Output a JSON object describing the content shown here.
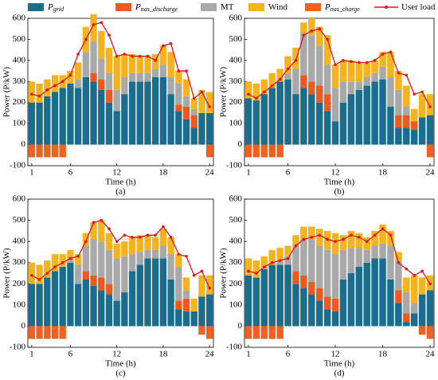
{
  "chart_data": [
    {
      "type": "stacked_bar_line",
      "caption": "(a)",
      "x_label": "Time (h)",
      "y_label": "Power (P/kW)",
      "x": [
        1,
        2,
        3,
        4,
        5,
        6,
        7,
        8,
        9,
        10,
        11,
        12,
        13,
        14,
        15,
        16,
        17,
        18,
        19,
        20,
        21,
        22,
        23,
        24
      ],
      "xlim": [
        0.5,
        24.5
      ],
      "xticks": [
        1,
        6,
        12,
        18,
        24
      ],
      "ylim": [
        -100,
        600
      ],
      "yticks": [
        -100,
        0,
        100,
        200,
        300,
        400,
        500,
        600
      ],
      "series": [
        {
          "name": "P",
          "subscript": "grid",
          "color": "#1b6d8e",
          "values": [
            200,
            200,
            230,
            250,
            270,
            290,
            270,
            320,
            300,
            260,
            200,
            160,
            240,
            300,
            300,
            300,
            320,
            320,
            240,
            160,
            120,
            80,
            150,
            150
          ]
        },
        {
          "name": "P",
          "subscript": "nas_discharge",
          "color": "#ec5a22",
          "values": [
            0,
            0,
            0,
            0,
            0,
            0,
            0,
            0,
            40,
            50,
            60,
            0,
            0,
            0,
            0,
            0,
            0,
            0,
            0,
            30,
            60,
            60,
            0,
            0
          ]
        },
        {
          "name": "MT",
          "color": "#a9a9a9",
          "values": [
            0,
            0,
            0,
            0,
            0,
            0,
            40,
            120,
            150,
            100,
            80,
            100,
            80,
            40,
            40,
            40,
            40,
            60,
            80,
            100,
            50,
            30,
            0,
            0
          ]
        },
        {
          "name": "Wind",
          "color": "#f6b320",
          "values": [
            100,
            90,
            80,
            80,
            60,
            60,
            80,
            120,
            130,
            130,
            120,
            160,
            110,
            90,
            80,
            80,
            70,
            90,
            120,
            60,
            80,
            50,
            110,
            100
          ]
        },
        {
          "name": "P",
          "subscript": "nas_charge",
          "color": "#f0601e",
          "values": [
            -60,
            -60,
            -60,
            -60,
            -60,
            0,
            0,
            0,
            0,
            0,
            0,
            0,
            0,
            0,
            0,
            0,
            0,
            0,
            0,
            0,
            0,
            0,
            0,
            -60
          ]
        },
        {
          "name": "User load",
          "type": "line",
          "color": "#e0161e",
          "values": [
            240,
            230,
            260,
            280,
            300,
            330,
            430,
            500,
            570,
            580,
            520,
            420,
            430,
            420,
            420,
            420,
            400,
            470,
            480,
            350,
            350,
            220,
            250,
            180
          ]
        }
      ]
    },
    {
      "type": "stacked_bar_line",
      "caption": "(b)",
      "x_label": "Time (h)",
      "y_label": "Power (P/kW)",
      "x": [
        1,
        2,
        3,
        4,
        5,
        6,
        7,
        8,
        9,
        10,
        11,
        12,
        13,
        14,
        15,
        16,
        17,
        18,
        19,
        20,
        21,
        22,
        23,
        24
      ],
      "xlim": [
        0.5,
        24.5
      ],
      "xticks": [
        1,
        6,
        12,
        18,
        24
      ],
      "ylim": [
        -100,
        600
      ],
      "yticks": [
        -100,
        0,
        100,
        200,
        300,
        400,
        500,
        600
      ],
      "series": [
        {
          "color": "#1b6d8e",
          "values": [
            220,
            210,
            240,
            270,
            300,
            310,
            240,
            270,
            240,
            200,
            160,
            110,
            200,
            240,
            260,
            280,
            300,
            310,
            180,
            80,
            80,
            70,
            130,
            140
          ]
        },
        {
          "color": "#ec5a22",
          "values": [
            0,
            0,
            0,
            0,
            0,
            0,
            0,
            60,
            60,
            80,
            80,
            0,
            0,
            0,
            0,
            0,
            0,
            0,
            0,
            60,
            60,
            40,
            0,
            0
          ]
        },
        {
          "color": "#a9a9a9",
          "values": [
            0,
            0,
            0,
            0,
            0,
            30,
            120,
            200,
            220,
            190,
            140,
            160,
            100,
            60,
            40,
            40,
            40,
            60,
            140,
            120,
            40,
            0,
            0,
            0
          ]
        },
        {
          "color": "#f6b320",
          "values": [
            80,
            80,
            70,
            70,
            60,
            80,
            100,
            50,
            80,
            90,
            140,
            110,
            100,
            100,
            90,
            70,
            60,
            70,
            120,
            90,
            100,
            60,
            110,
            100
          ]
        },
        {
          "color": "#f0601e",
          "values": [
            -60,
            -60,
            -60,
            -60,
            -60,
            0,
            0,
            0,
            0,
            0,
            0,
            0,
            0,
            0,
            0,
            0,
            0,
            0,
            0,
            0,
            0,
            0,
            0,
            -60
          ]
        },
        {
          "type": "line",
          "color": "#e0161e",
          "values": [
            240,
            220,
            250,
            280,
            310,
            360,
            400,
            520,
            540,
            550,
            500,
            380,
            400,
            395,
            390,
            390,
            400,
            430,
            440,
            340,
            330,
            240,
            250,
            180
          ]
        }
      ]
    },
    {
      "type": "stacked_bar_line",
      "caption": "(c)",
      "x_label": "Time (h)",
      "y_label": "Power (P/kW)",
      "x": [
        1,
        2,
        3,
        4,
        5,
        6,
        7,
        8,
        9,
        10,
        11,
        12,
        13,
        14,
        15,
        16,
        17,
        18,
        19,
        20,
        21,
        22,
        23,
        24
      ],
      "xlim": [
        0.5,
        24.5
      ],
      "xticks": [
        1,
        6,
        12,
        18,
        24
      ],
      "ylim": [
        -100,
        600
      ],
      "yticks": [
        -100,
        0,
        100,
        200,
        300,
        400,
        500,
        600
      ],
      "series": [
        {
          "color": "#1b6d8e",
          "values": [
            200,
            200,
            230,
            260,
            280,
            300,
            200,
            220,
            190,
            170,
            150,
            120,
            160,
            260,
            290,
            320,
            320,
            320,
            220,
            80,
            70,
            70,
            140,
            150
          ]
        },
        {
          "color": "#ec5a22",
          "values": [
            0,
            0,
            0,
            0,
            0,
            0,
            0,
            40,
            50,
            60,
            50,
            0,
            0,
            0,
            0,
            0,
            0,
            0,
            0,
            40,
            60,
            0,
            0,
            0
          ]
        },
        {
          "color": "#a9a9a9",
          "values": [
            0,
            0,
            0,
            0,
            0,
            20,
            90,
            120,
            170,
            170,
            160,
            200,
            170,
            80,
            60,
            40,
            40,
            60,
            120,
            160,
            40,
            0,
            0,
            0
          ]
        },
        {
          "color": "#f6b320",
          "values": [
            100,
            90,
            80,
            80,
            60,
            40,
            50,
            60,
            80,
            100,
            80,
            70,
            70,
            80,
            80,
            70,
            60,
            80,
            80,
            60,
            60,
            60,
            100,
            90
          ]
        },
        {
          "color": "#f0601e",
          "values": [
            -60,
            -60,
            -60,
            -60,
            -60,
            0,
            0,
            0,
            0,
            0,
            0,
            0,
            0,
            0,
            0,
            0,
            0,
            0,
            0,
            0,
            0,
            0,
            -40,
            -60
          ]
        },
        {
          "type": "line",
          "color": "#e0161e",
          "values": [
            240,
            220,
            250,
            280,
            300,
            320,
            330,
            400,
            490,
            500,
            460,
            400,
            430,
            420,
            420,
            430,
            430,
            470,
            420,
            340,
            330,
            240,
            260,
            180
          ]
        }
      ]
    },
    {
      "type": "stacked_bar_line",
      "caption": "(d)",
      "x_label": "Time (h)",
      "y_label": "Power (P/kW)",
      "x": [
        1,
        2,
        3,
        4,
        5,
        6,
        7,
        8,
        9,
        10,
        11,
        12,
        13,
        14,
        15,
        16,
        17,
        18,
        19,
        20,
        21,
        22,
        23,
        24
      ],
      "xlim": [
        0.5,
        24.5
      ],
      "xticks": [
        1,
        6,
        12,
        18,
        24
      ],
      "ylim": [
        -100,
        600
      ],
      "yticks": [
        -100,
        0,
        100,
        200,
        300,
        400,
        500,
        600
      ],
      "series": [
        {
          "color": "#1b6d8e",
          "values": [
            240,
            230,
            270,
            290,
            290,
            290,
            200,
            180,
            150,
            120,
            80,
            70,
            220,
            250,
            280,
            300,
            320,
            320,
            220,
            110,
            20,
            60,
            150,
            170
          ]
        },
        {
          "color": "#ec5a22",
          "values": [
            0,
            0,
            0,
            0,
            0,
            0,
            60,
            60,
            60,
            60,
            60,
            60,
            0,
            0,
            0,
            0,
            0,
            0,
            0,
            60,
            40,
            0,
            0,
            0
          ]
        },
        {
          "color": "#a9a9a9",
          "values": [
            0,
            0,
            0,
            0,
            20,
            40,
            120,
            170,
            200,
            200,
            220,
            210,
            140,
            120,
            90,
            60,
            60,
            70,
            160,
            140,
            100,
            50,
            0,
            0
          ]
        },
        {
          "color": "#f6b320",
          "values": [
            80,
            80,
            60,
            70,
            60,
            50,
            50,
            60,
            60,
            80,
            90,
            100,
            70,
            80,
            70,
            60,
            70,
            90,
            70,
            40,
            70,
            130,
            80,
            70
          ]
        },
        {
          "color": "#f0601e",
          "values": [
            -60,
            -60,
            -60,
            -60,
            -60,
            0,
            0,
            0,
            0,
            0,
            0,
            0,
            0,
            0,
            0,
            0,
            0,
            0,
            0,
            0,
            0,
            0,
            -40,
            -60
          ]
        },
        {
          "type": "line",
          "color": "#e0161e",
          "values": [
            260,
            250,
            280,
            300,
            310,
            320,
            380,
            410,
            420,
            430,
            410,
            400,
            410,
            430,
            420,
            400,
            430,
            460,
            430,
            300,
            270,
            240,
            260,
            200
          ]
        }
      ]
    }
  ]
}
